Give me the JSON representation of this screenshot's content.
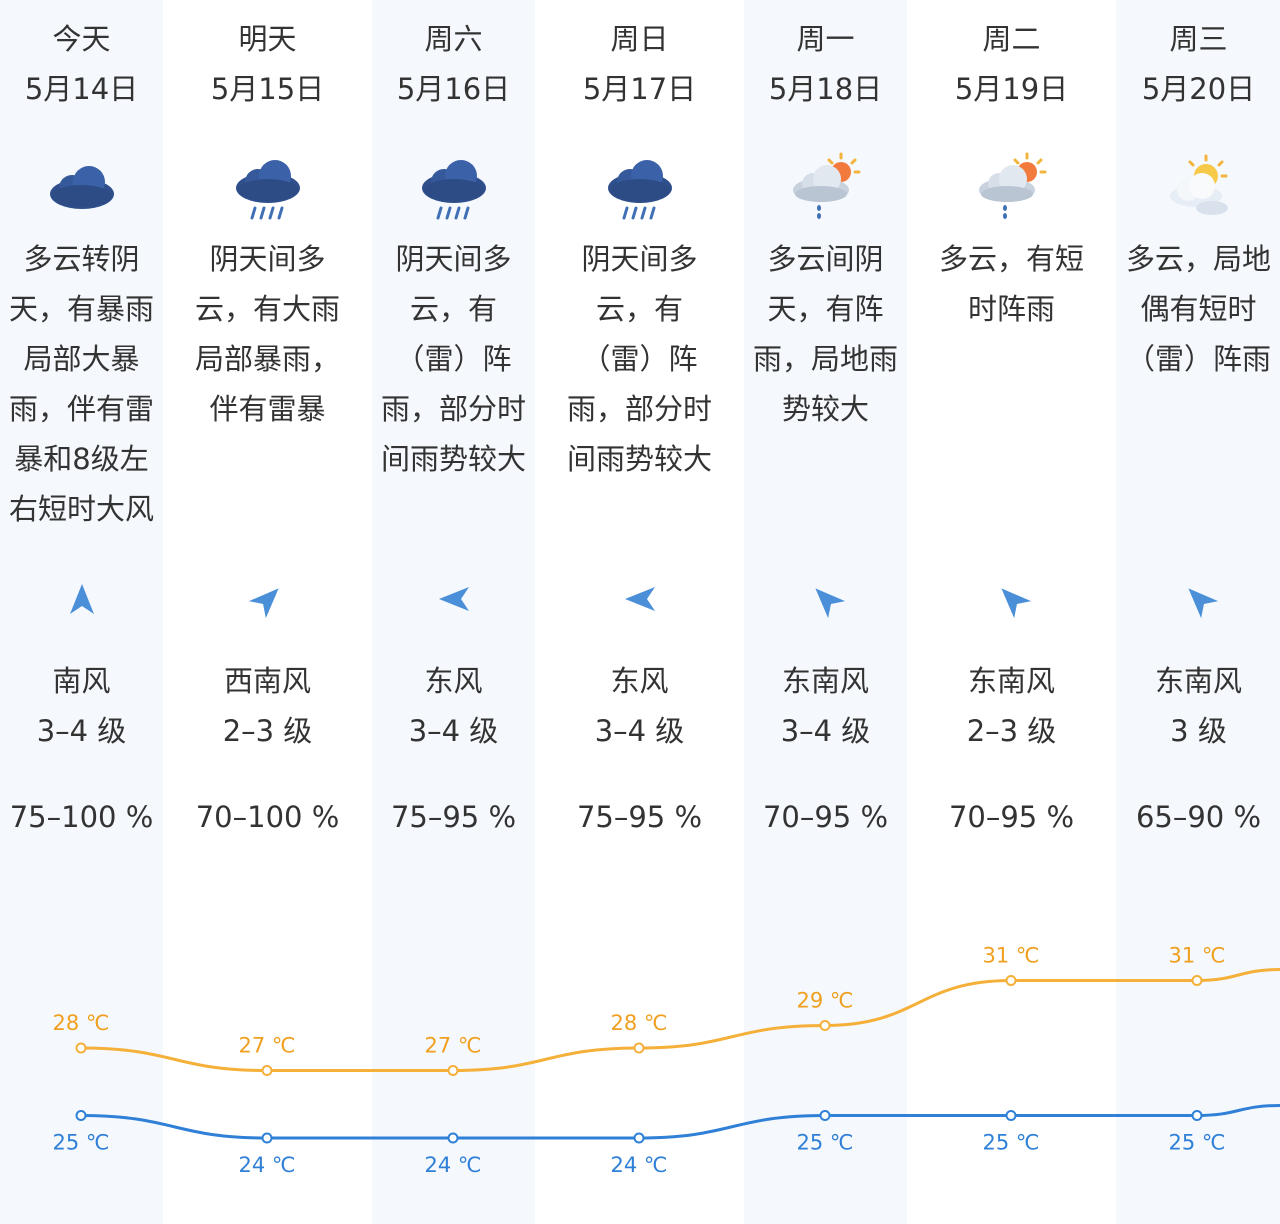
{
  "colors": {
    "high_line": "#f5b03a",
    "low_line": "#2f80d6",
    "high_label": "#f0a020",
    "low_label": "#2f80d6",
    "stripe": "#f5f8fc",
    "text": "#333333",
    "arrow": "#4a8fd8"
  },
  "days": [
    {
      "name": "今天",
      "date": "5月14日",
      "icon": "cloudy-icon",
      "desc": [
        "多云转阴",
        "天，有暴雨",
        "局部大暴",
        "雨，伴有雷",
        "暴和8级左",
        "右短时大风"
      ],
      "wind_direction_deg": 0,
      "wind_dir": "南风",
      "wind_level": "3–4 级",
      "humidity": "75–100 %",
      "high": 28,
      "high_label": "28 ℃",
      "low": 25,
      "low_label": "25 ℃"
    },
    {
      "name": "明天",
      "date": "5月15日",
      "icon": "heavy-rain-icon",
      "desc": [
        "阴天间多",
        "云，有大雨",
        "局部暴雨，",
        "伴有雷暴"
      ],
      "wind_direction_deg": 45,
      "wind_dir": "西南风",
      "wind_level": "2–3 级",
      "humidity": "70–100 %",
      "high": 27,
      "high_label": "27 ℃",
      "low": 24,
      "low_label": "24 ℃"
    },
    {
      "name": "周六",
      "date": "5月16日",
      "icon": "heavy-rain-icon",
      "desc": [
        "阴天间多",
        "云，有",
        "（雷）阵",
        "雨，部分时",
        "间雨势较大"
      ],
      "wind_direction_deg": 270,
      "wind_dir": "东风",
      "wind_level": "3–4 级",
      "humidity": "75–95 %",
      "high": 27,
      "high_label": "27 ℃",
      "low": 24,
      "low_label": "24 ℃"
    },
    {
      "name": "周日",
      "date": "5月17日",
      "icon": "heavy-rain-icon",
      "desc": [
        "阴天间多",
        "云，有",
        "（雷）阵",
        "雨，部分时",
        "间雨势较大"
      ],
      "wind_direction_deg": 270,
      "wind_dir": "东风",
      "wind_level": "3–4 级",
      "humidity": "75–95 %",
      "high": 28,
      "high_label": "28 ℃",
      "low": 24,
      "low_label": "24 ℃"
    },
    {
      "name": "周一",
      "date": "5月18日",
      "icon": "sun-cloud-shower-icon",
      "desc": [
        "多云间阴",
        "天，有阵",
        "雨，局地雨",
        "势较大"
      ],
      "wind_direction_deg": 315,
      "wind_dir": "东南风",
      "wind_level": "3–4 级",
      "humidity": "70–95 %",
      "high": 29,
      "high_label": "29 ℃",
      "low": 25,
      "low_label": "25 ℃"
    },
    {
      "name": "周二",
      "date": "5月19日",
      "icon": "sun-cloud-shower-icon",
      "desc": [
        "多云，有短",
        "时阵雨"
      ],
      "wind_direction_deg": 315,
      "wind_dir": "东南风",
      "wind_level": "2–3 级",
      "humidity": "70–95 %",
      "high": 31,
      "high_label": "31 ℃",
      "low": 25,
      "low_label": "25 ℃"
    },
    {
      "name": "周三",
      "date": "5月20日",
      "icon": "partly-cloudy-icon",
      "desc": [
        "多云，局地",
        "偶有短时",
        "（雷）阵雨"
      ],
      "wind_direction_deg": 315,
      "wind_dir": "东南风",
      "wind_level": "3 级",
      "humidity": "65–90 %",
      "high": 31,
      "high_label": "31 ℃",
      "low": 25,
      "low_label": "25 ℃"
    }
  ]
}
